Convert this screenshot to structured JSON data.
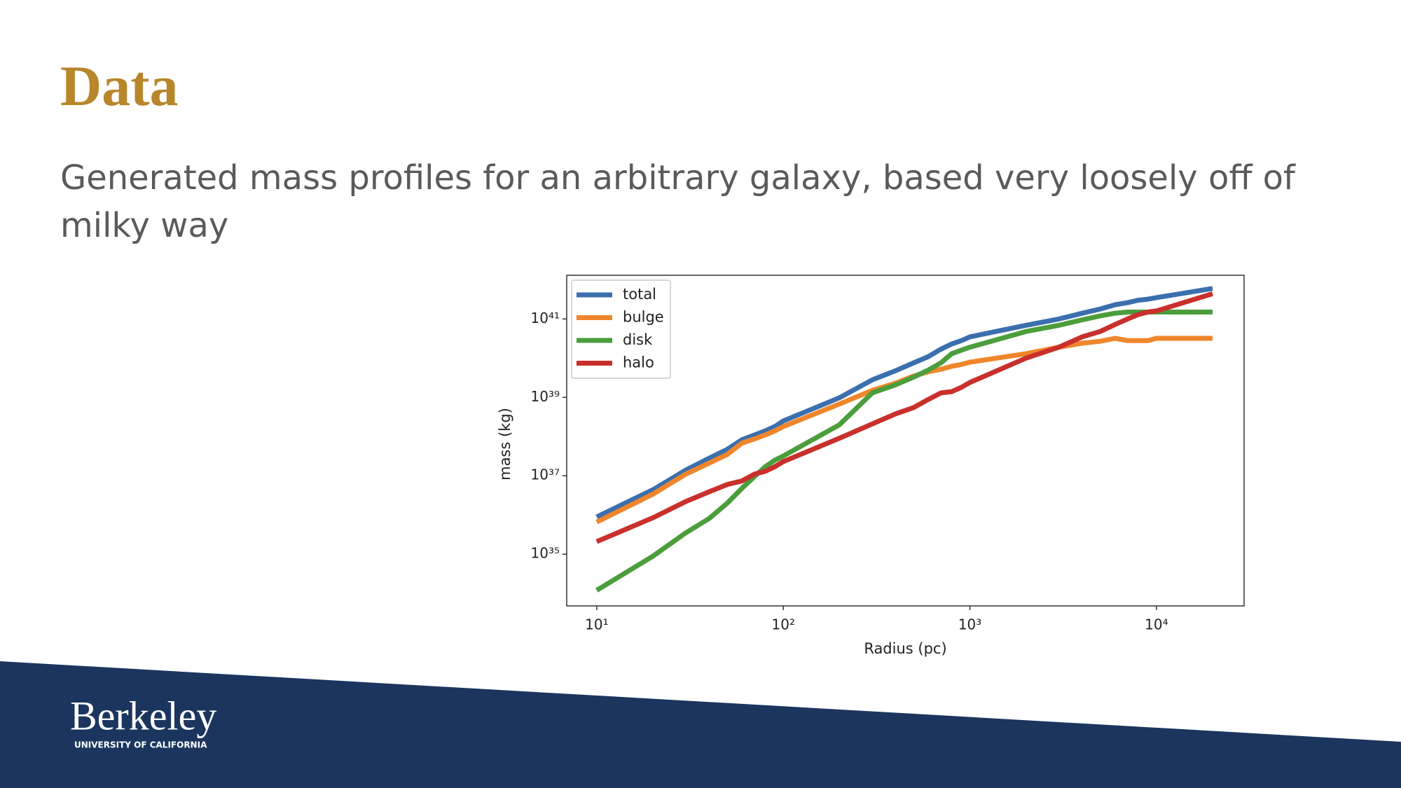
{
  "slide": {
    "title": "Data",
    "subtitle": "Generated mass profiles for an arbitrary galaxy, based very loosely off of milky way",
    "logo": {
      "name": "Berkeley",
      "subtitle": "UNIVERSITY OF CALIFORNIA"
    }
  },
  "chart_data": {
    "type": "line",
    "xlabel": "Radius (pc)",
    "ylabel": "mass (kg)",
    "x": [
      10,
      20,
      30,
      40,
      50,
      60,
      70,
      80,
      90,
      100,
      200,
      300,
      400,
      500,
      600,
      700,
      800,
      900,
      1000,
      2000,
      3000,
      4000,
      5000,
      6000,
      7000,
      8000,
      9000,
      10000,
      20000
    ],
    "series": [
      {
        "name": "total",
        "color": "#3b6fae",
        "values": [
          8.9e+35,
          4.4e+36,
          1.4e+37,
          2.8e+37,
          4.7e+37,
          8.3e+37,
          1.1e+38,
          1.4e+38,
          1.8e+38,
          2.5e+38,
          9.8e+38,
          2.8e+39,
          4.8e+39,
          7.6e+39,
          1.1e+40,
          1.7e+40,
          2.3e+40,
          2.8e+40,
          3.5e+40,
          6.9e+40,
          1e+41,
          1.4e+41,
          1.8e+41,
          2.3e+41,
          2.6e+41,
          3e+41,
          3.2e+41,
          3.5e+41,
          6e+41
        ]
      },
      {
        "name": "bulge",
        "color": "#f0862b",
        "values": [
          6.6e+35,
          3.4e+36,
          1.1e+37,
          2.1e+37,
          3.5e+37,
          6.8e+37,
          8.7e+37,
          1.1e+38,
          1.4e+38,
          1.8e+38,
          6.8e+38,
          1.5e+39,
          2.3e+39,
          3.5e+39,
          4.5e+39,
          5.2e+39,
          6.2e+39,
          6.9e+39,
          7.9e+39,
          1.3e+40,
          1.9e+40,
          2.4e+40,
          2.7e+40,
          3.2e+40,
          2.8e+40,
          2.8e+40,
          2.8e+40,
          3.2e+40,
          3.2e+40
        ]
      },
      {
        "name": "disk",
        "color": "#4b9e3b",
        "values": [
          1.2e+34,
          8.9e+34,
          3.5e+35,
          8.1e+35,
          2e+36,
          4.8e+36,
          9.5e+36,
          1.7e+37,
          2.5e+37,
          3.2e+37,
          2e+38,
          1.3e+39,
          2.1e+39,
          3.3e+39,
          5e+39,
          7.6e+39,
          1.3e+40,
          1.6e+40,
          1.9e+40,
          4.8e+40,
          6.9e+40,
          9.5e+40,
          1.2e+41,
          1.4e+41,
          1.5e+41,
          1.5e+41,
          1.5e+41,
          1.5e+41,
          1.5e+41
        ]
      },
      {
        "name": "halo",
        "color": "#c9302c",
        "values": [
          2.1e+35,
          8.5e+35,
          2.2e+36,
          3.9e+36,
          6e+36,
          7.4e+36,
          1.1e+37,
          1.3e+37,
          1.7e+37,
          2.3e+37,
          9.1e+37,
          2.1e+38,
          3.8e+38,
          5.5e+38,
          8.9e+38,
          1.3e+39,
          1.4e+39,
          1.8e+39,
          2.4e+39,
          1e+40,
          1.9e+40,
          3.5e+40,
          4.8e+40,
          7.2e+40,
          1e+41,
          1.3e+41,
          1.5e+41,
          1.6e+41,
          4.4e+41
        ]
      }
    ],
    "xscale": "log",
    "yscale": "log",
    "xlim": [
      6.9,
      29500
    ],
    "ylim": [
      4.8e+33,
      1.3e+42
    ],
    "xticks": [
      {
        "value": 10,
        "label": "10¹"
      },
      {
        "value": 100,
        "label": "10²"
      },
      {
        "value": 1000,
        "label": "10³"
      },
      {
        "value": 10000,
        "label": "10⁴"
      }
    ],
    "yticks": [
      {
        "value": 1e+35,
        "label": "10³⁵"
      },
      {
        "value": 1e+37,
        "label": "10³⁷"
      },
      {
        "value": 1e+39,
        "label": "10³⁹"
      },
      {
        "value": 1e+41,
        "label": "10⁴¹"
      }
    ],
    "grid": false,
    "legend": "upper left"
  }
}
